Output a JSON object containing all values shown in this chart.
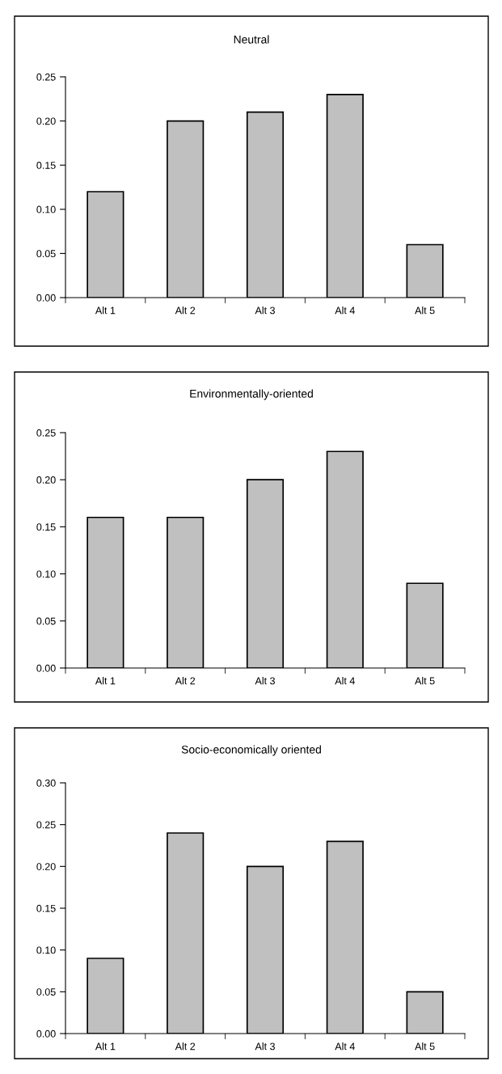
{
  "chart_data": [
    {
      "type": "bar",
      "title": "Neutral",
      "categories": [
        "Alt 1",
        "Alt 2",
        "Alt 3",
        "Alt 4",
        "Alt 5"
      ],
      "values": [
        0.12,
        0.2,
        0.21,
        0.23,
        0.06
      ],
      "color": "#c0c0c0",
      "ylim": [
        0,
        0.25
      ],
      "yticks": [
        {
          "value": 0,
          "label": "0.00"
        },
        {
          "value": 0.05,
          "label": "0.05"
        },
        {
          "value": 0.1,
          "label": "0.10"
        },
        {
          "value": 0.15,
          "label": "0.15"
        },
        {
          "value": 0.2,
          "label": "0.20"
        },
        {
          "value": 0.25,
          "label": "0.25"
        }
      ]
    },
    {
      "type": "bar",
      "title": "Environmentally-oriented",
      "categories": [
        "Alt 1",
        "Alt 2",
        "Alt 3",
        "Alt 4",
        "Alt 5"
      ],
      "values": [
        0.16,
        0.16,
        0.2,
        0.23,
        0.09
      ],
      "color": "#c0c0c0",
      "ylim": [
        0,
        0.25
      ],
      "yticks": [
        {
          "value": 0,
          "label": "0.00"
        },
        {
          "value": 0.05,
          "label": "0.05"
        },
        {
          "value": 0.1,
          "label": "0.10"
        },
        {
          "value": 0.15,
          "label": "0.15"
        },
        {
          "value": 0.2,
          "label": "0.20"
        },
        {
          "value": 0.25,
          "label": "0.25"
        }
      ]
    },
    {
      "type": "bar",
      "title": "Socio-economically oriented",
      "categories": [
        "Alt 1",
        "Alt 2",
        "Alt 3",
        "Alt 4",
        "Alt 5"
      ],
      "values": [
        0.09,
        0.24,
        0.2,
        0.23,
        0.05
      ],
      "color": "#c0c0c0",
      "ylim": [
        0,
        0.3
      ],
      "yticks": [
        {
          "value": 0,
          "label": "0.00"
        },
        {
          "value": 0.05,
          "label": "0.05"
        },
        {
          "value": 0.1,
          "label": "0.10"
        },
        {
          "value": 0.15,
          "label": "0.15"
        },
        {
          "value": 0.2,
          "label": "0.20"
        },
        {
          "value": 0.25,
          "label": "0.25"
        },
        {
          "value": 0.3,
          "label": "0.30"
        }
      ]
    }
  ]
}
